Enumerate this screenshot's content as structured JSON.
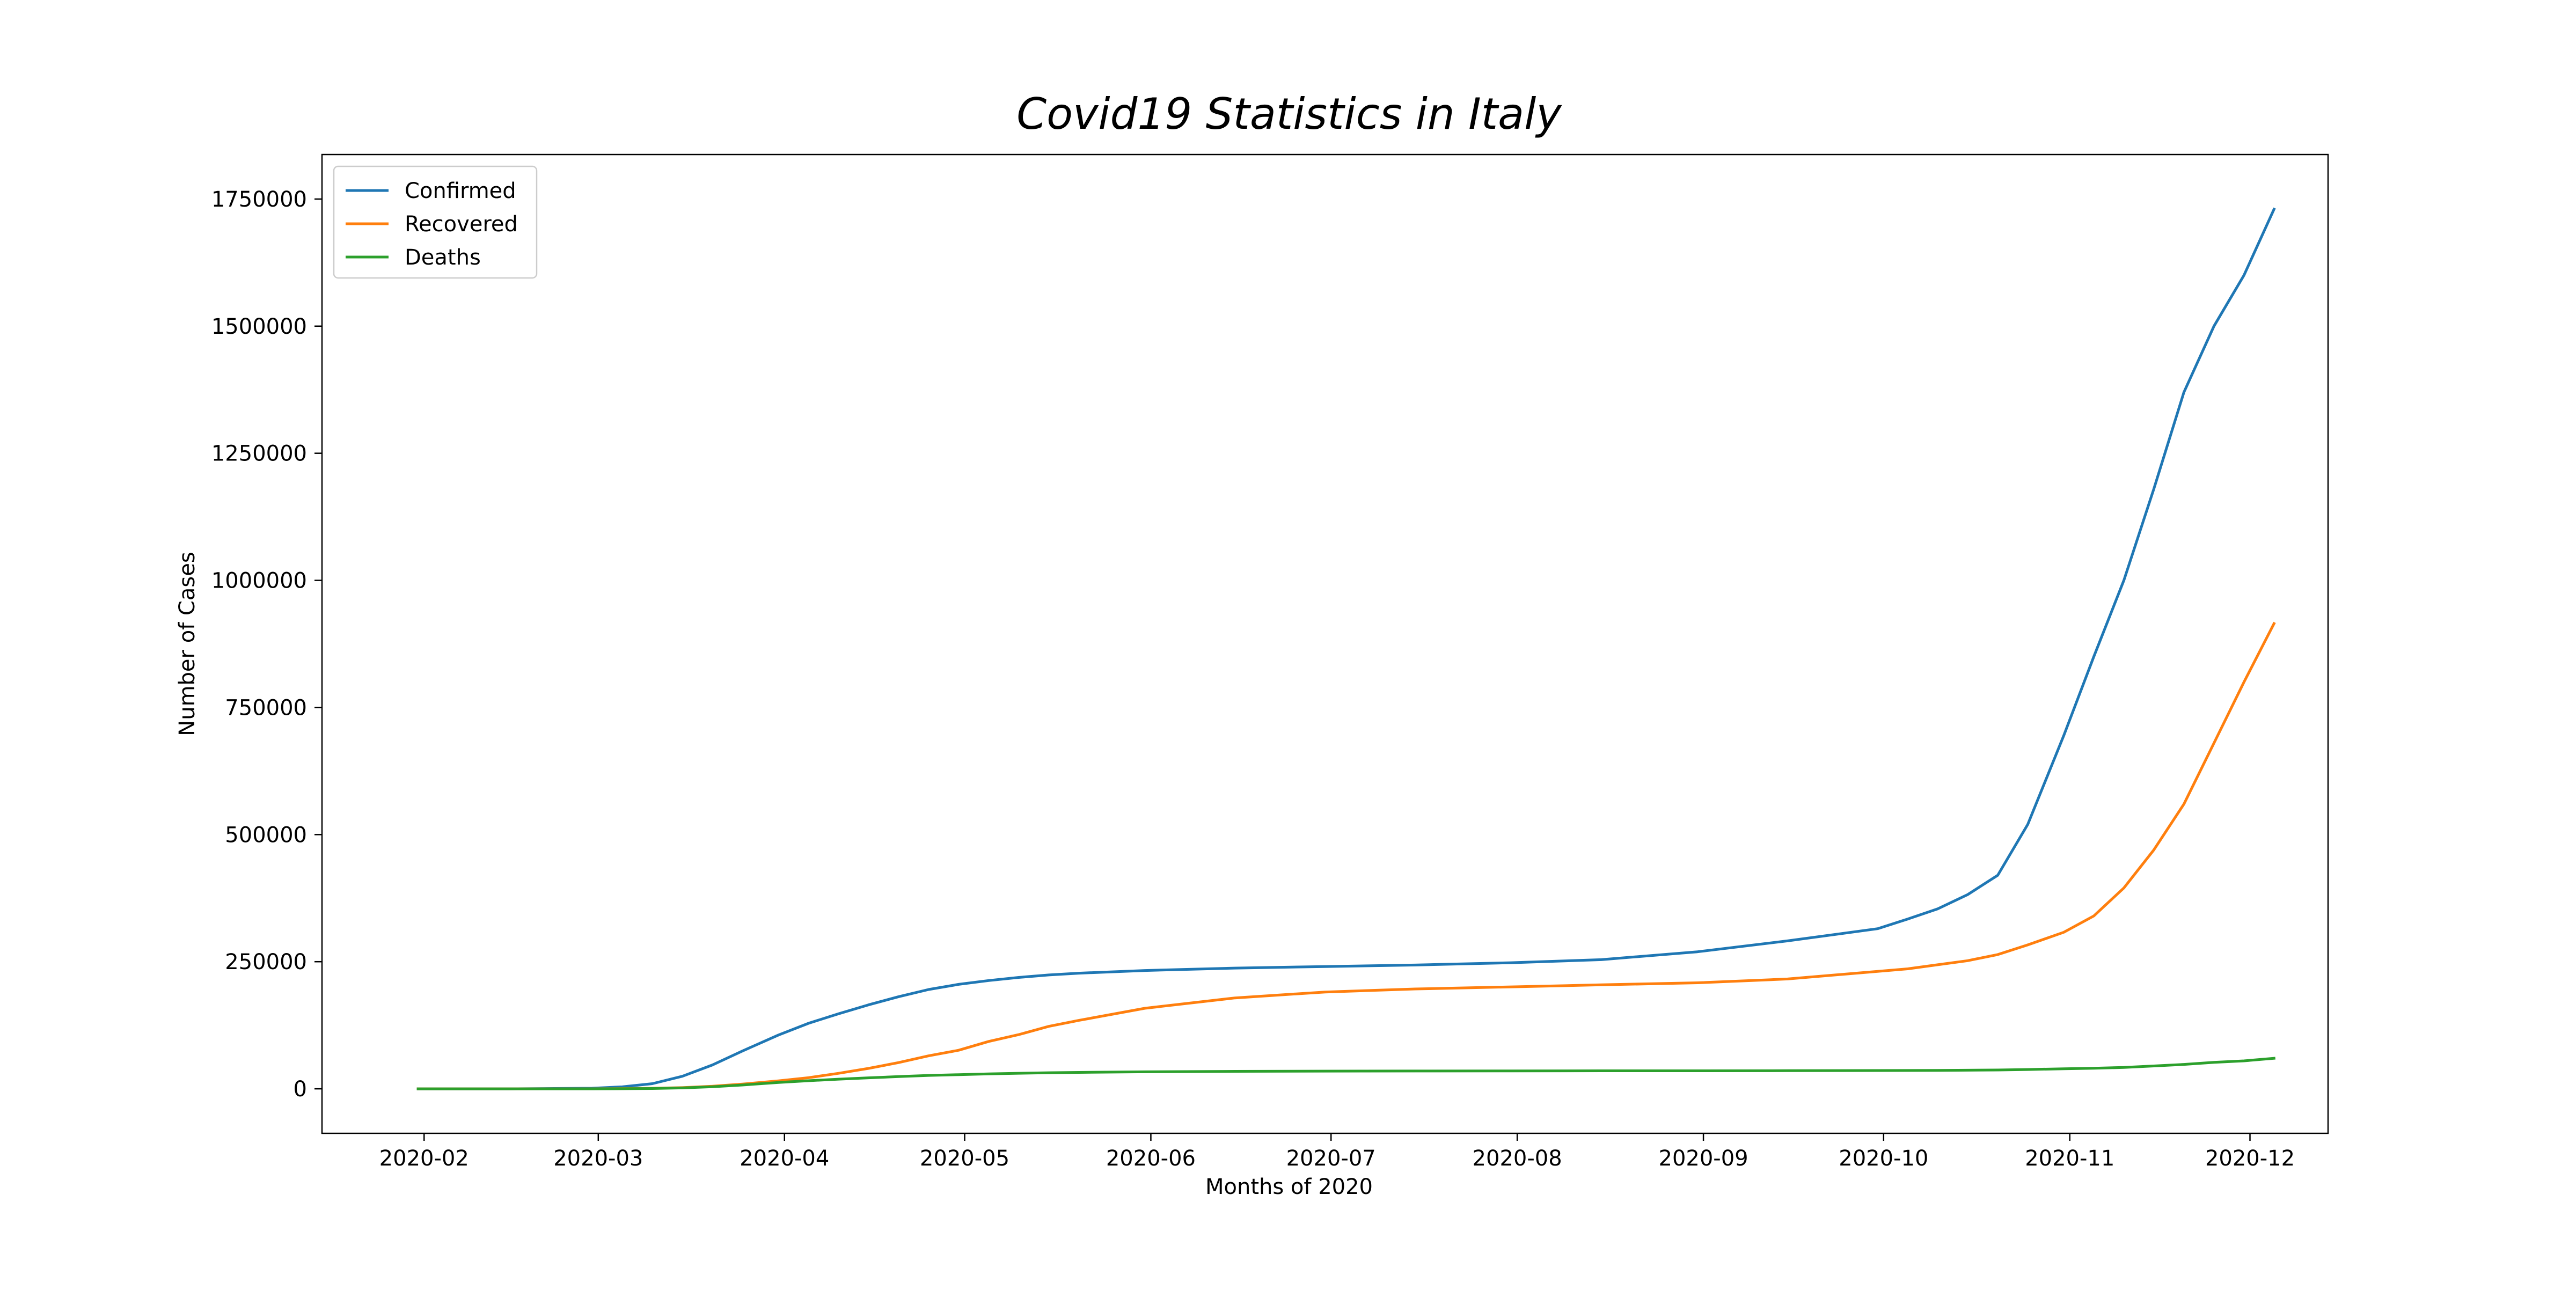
{
  "chart_data": {
    "type": "line",
    "title": "Covid19 Statistics in Italy",
    "xlabel": "Months of 2020",
    "ylabel": "Number of Cases",
    "x_type": "date",
    "x_range": [
      "2020-01-15",
      "2020-12-14"
    ],
    "ylim": [
      -87500,
      1837500
    ],
    "x_ticks": [
      "2020-02",
      "2020-03",
      "2020-04",
      "2020-05",
      "2020-06",
      "2020-07",
      "2020-08",
      "2020-09",
      "2020-10",
      "2020-11",
      "2020-12"
    ],
    "y_ticks": [
      0,
      250000,
      500000,
      750000,
      1000000,
      1250000,
      1500000,
      1750000
    ],
    "y_tick_labels": [
      "0",
      "250000",
      "500000",
      "750000",
      "1000000",
      "1250000",
      "1500000",
      "1750000"
    ],
    "grid": false,
    "legend_position": "top-left",
    "x": [
      "2020-01-31",
      "2020-02-15",
      "2020-02-29",
      "2020-03-05",
      "2020-03-10",
      "2020-03-15",
      "2020-03-20",
      "2020-03-25",
      "2020-03-31",
      "2020-04-05",
      "2020-04-10",
      "2020-04-15",
      "2020-04-20",
      "2020-04-25",
      "2020-04-30",
      "2020-05-05",
      "2020-05-10",
      "2020-05-15",
      "2020-05-20",
      "2020-05-31",
      "2020-06-15",
      "2020-06-30",
      "2020-07-15",
      "2020-07-31",
      "2020-08-15",
      "2020-08-31",
      "2020-09-15",
      "2020-09-30",
      "2020-10-05",
      "2020-10-10",
      "2020-10-15",
      "2020-10-20",
      "2020-10-25",
      "2020-10-31",
      "2020-11-05",
      "2020-11-10",
      "2020-11-15",
      "2020-11-20",
      "2020-11-25",
      "2020-11-30",
      "2020-12-05"
    ],
    "series": [
      {
        "name": "Confirmed",
        "color": "#1f77b4",
        "values": [
          2,
          3,
          1100,
          3900,
          10100,
          24700,
          47000,
          74400,
          105800,
          128900,
          147600,
          165200,
          181200,
          195300,
          205500,
          213000,
          219100,
          223900,
          227400,
          232700,
          237500,
          240500,
          243500,
          248000,
          254000,
          269500,
          291000,
          314900,
          333900,
          354000,
          382000,
          420000,
          520000,
          695000,
          850000,
          1000000,
          1180000,
          1370000,
          1500000,
          1600000,
          1730000
        ]
      },
      {
        "name": "Recovered",
        "color": "#ff7f0e",
        "values": [
          0,
          0,
          50,
          500,
          1000,
          2300,
          5100,
          9300,
          15700,
          21800,
          30500,
          40200,
          51600,
          64900,
          75900,
          93200,
          106600,
          122800,
          134600,
          158400,
          178800,
          190400,
          196400,
          200500,
          204500,
          208500,
          216000,
          231000,
          236000,
          244000,
          252000,
          264000,
          283000,
          308000,
          340000,
          395000,
          470000,
          560000,
          680000,
          800000,
          915000
        ]
      },
      {
        "name": "Deaths",
        "color": "#2ca02c",
        "values": [
          0,
          0,
          30,
          150,
          630,
          1800,
          4000,
          7500,
          12400,
          15900,
          19000,
          21600,
          24100,
          26400,
          27900,
          29300,
          30600,
          31600,
          32300,
          33400,
          34400,
          34800,
          35000,
          35200,
          35400,
          35500,
          35700,
          36000,
          36100,
          36300,
          36600,
          37000,
          38000,
          39500,
          40500,
          42000,
          45000,
          48000,
          52000,
          55000,
          60000
        ]
      }
    ]
  }
}
